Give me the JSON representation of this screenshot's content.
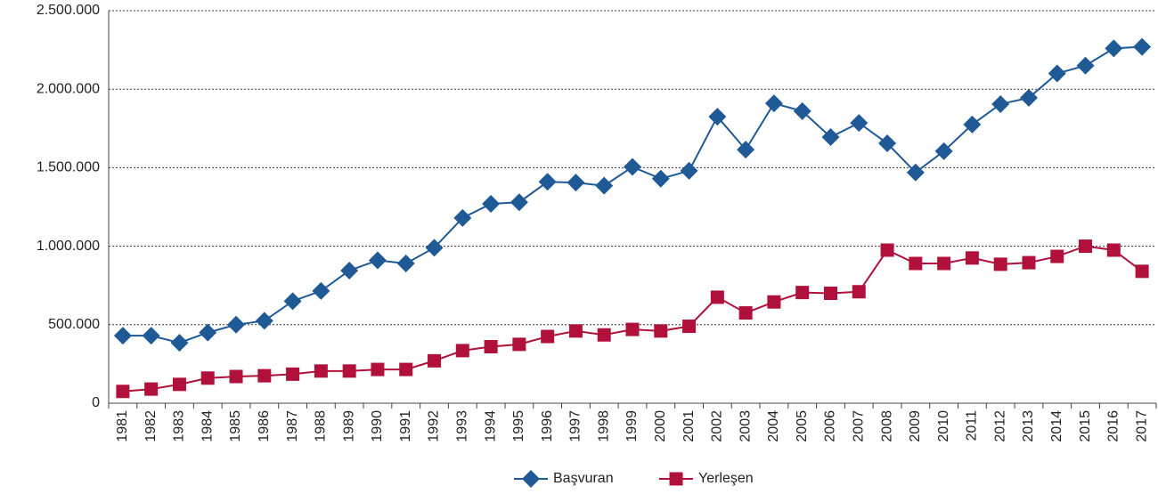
{
  "chart_data": {
    "type": "line",
    "categories": [
      "1981",
      "1982",
      "1983",
      "1984",
      "1985",
      "1986",
      "1987",
      "1988",
      "1989",
      "1990",
      "1991",
      "1992",
      "1993",
      "1994",
      "1995",
      "1996",
      "1997",
      "1998",
      "1999",
      "2000",
      "2001",
      "2002",
      "2003",
      "2004",
      "2005",
      "2006",
      "2007",
      "2008",
      "2009",
      "2010",
      "2011",
      "2012",
      "2013",
      "2014",
      "2015",
      "2016",
      "2017"
    ],
    "series": [
      {
        "name": "Başvuran",
        "color": "#1f5a96",
        "marker": "diamond",
        "values": [
          430000,
          430000,
          385000,
          450000,
          500000,
          525000,
          650000,
          715000,
          845000,
          910000,
          890000,
          990000,
          1180000,
          1270000,
          1280000,
          1410000,
          1405000,
          1385000,
          1505000,
          1430000,
          1480000,
          1825000,
          1615000,
          1910000,
          1860000,
          1695000,
          1785000,
          1655000,
          1470000,
          1605000,
          1775000,
          1905000,
          1945000,
          2100000,
          2150000,
          2260000,
          2270000
        ]
      },
      {
        "name": "Yerleşen",
        "color": "#b0103a",
        "marker": "square",
        "values": [
          75000,
          90000,
          120000,
          160000,
          170000,
          175000,
          185000,
          205000,
          205000,
          215000,
          215000,
          270000,
          335000,
          360000,
          375000,
          425000,
          460000,
          435000,
          470000,
          460000,
          490000,
          675000,
          575000,
          645000,
          705000,
          700000,
          710000,
          975000,
          890000,
          890000,
          925000,
          885000,
          895000,
          935000,
          1000000,
          975000,
          840000
        ]
      }
    ],
    "ylim": [
      0,
      2500000
    ],
    "yticks": [
      0,
      {
        "value": 500000,
        "label": "500.000"
      },
      {
        "value": 1000000,
        "label": "1.000.000"
      },
      {
        "value": 1500000,
        "label": "1.500.000"
      },
      {
        "value": 2000000,
        "label": "2.000.000"
      },
      {
        "value": 2500000,
        "label": "2.500.000"
      }
    ],
    "grid": true,
    "legend": "bottom"
  }
}
